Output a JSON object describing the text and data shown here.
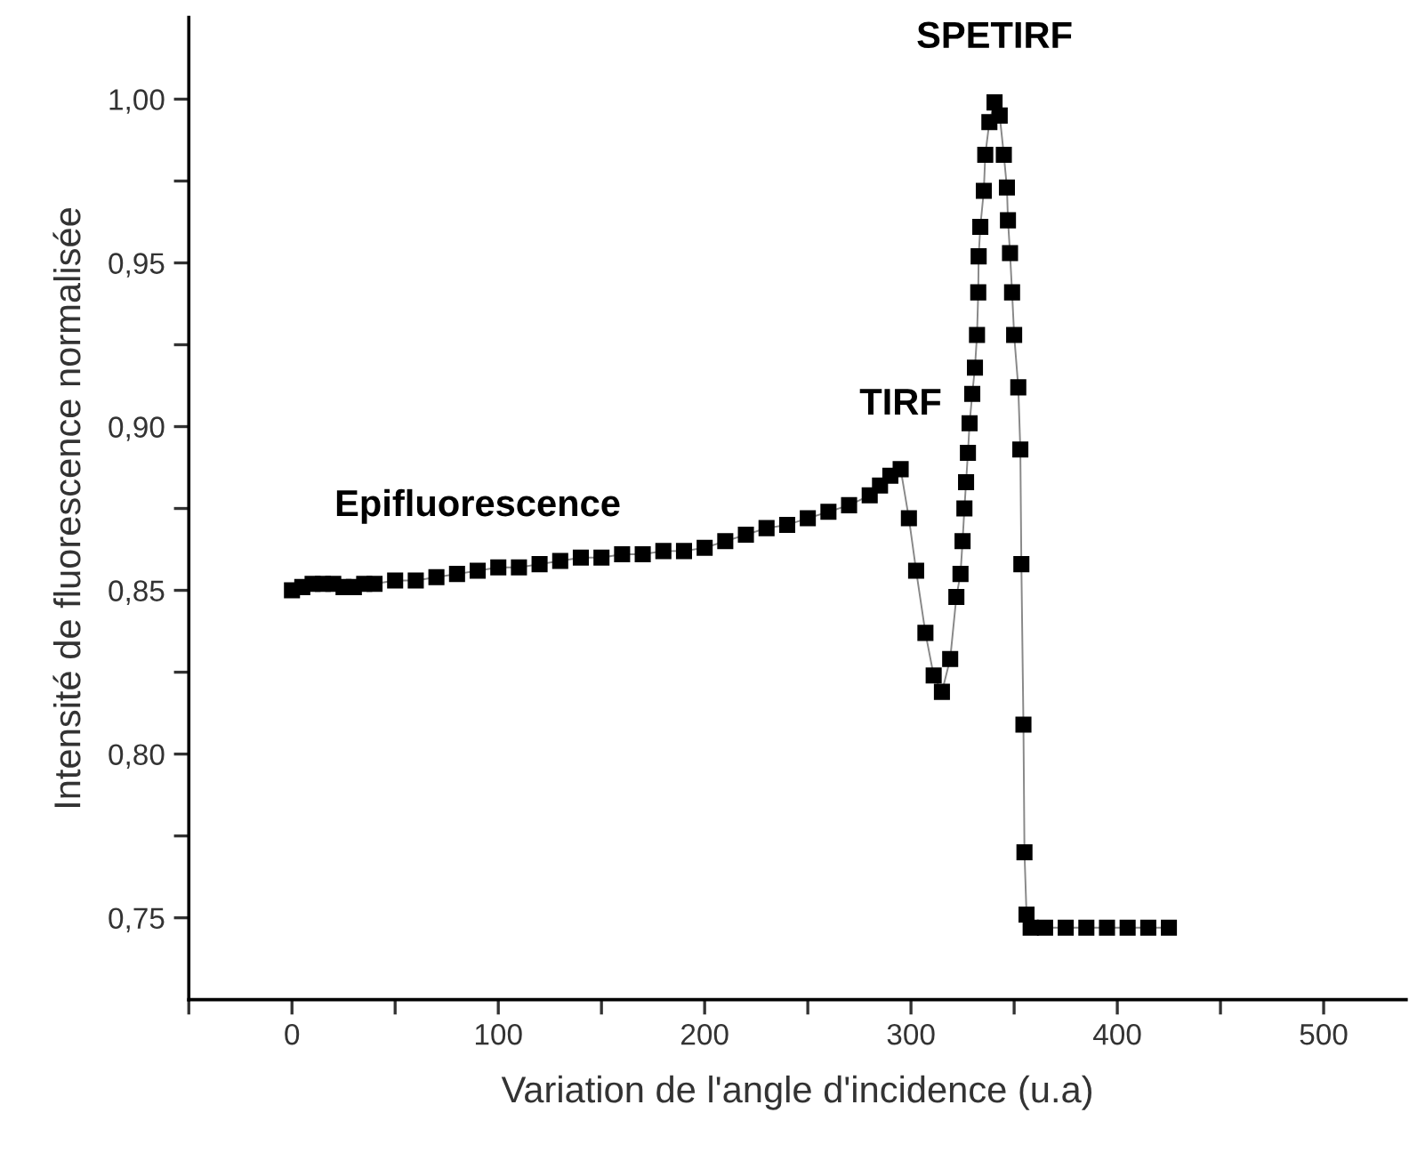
{
  "chart_data": {
    "type": "line",
    "xlabel": "Variation de l'angle d'incidence (u.a)",
    "ylabel": "Intensité de fluorescence normalisée",
    "xlim": [
      -50,
      540
    ],
    "ylim": [
      0.725,
      1.025
    ],
    "xticks": [
      {
        "value": -50,
        "label": null
      },
      0,
      {
        "value": 50,
        "label": null
      },
      100,
      {
        "value": 150,
        "label": null
      },
      200,
      {
        "value": 250,
        "label": null
      },
      300,
      {
        "value": 350,
        "label": null
      },
      400,
      {
        "value": 450,
        "label": null
      },
      500
    ],
    "yticks": [
      {
        "value": 0.75,
        "label": "0,75"
      },
      {
        "value": 0.775,
        "label": null
      },
      {
        "value": 0.8,
        "label": "0,80"
      },
      {
        "value": 0.825,
        "label": null
      },
      {
        "value": 0.85,
        "label": "0,85"
      },
      {
        "value": 0.875,
        "label": null
      },
      {
        "value": 0.9,
        "label": "0,90"
      },
      {
        "value": 0.925,
        "label": null
      },
      {
        "value": 0.95,
        "label": "0,95"
      },
      {
        "value": 0.975,
        "label": null
      },
      {
        "value": 1.0,
        "label": "1,00"
      }
    ],
    "grid": false,
    "marker": "square",
    "line_style": "solid",
    "series": [
      {
        "color": "#000000",
        "x": [
          0,
          5,
          10,
          15,
          20,
          25,
          30,
          35,
          40,
          50,
          60,
          70,
          80,
          90,
          100,
          110,
          120,
          130,
          140,
          150,
          160,
          170,
          180,
          190,
          200,
          210,
          220,
          230,
          240,
          250,
          260,
          270,
          280,
          285,
          290,
          295,
          299,
          302.5,
          307,
          311,
          315,
          319,
          322,
          324,
          325,
          325.9,
          326.7,
          327.6,
          328.4,
          329.7,
          331,
          332,
          332.6,
          332.8,
          333.6,
          335.3,
          336,
          338,
          340.5,
          343,
          345,
          346.5,
          347,
          348,
          349,
          350,
          352,
          353,
          353.5,
          354.5,
          355,
          356,
          358,
          365,
          375,
          385,
          395,
          405,
          415,
          425
        ],
        "values": [
          0.85,
          0.851,
          0.852,
          0.852,
          0.852,
          0.851,
          0.851,
          0.852,
          0.852,
          0.853,
          0.853,
          0.854,
          0.855,
          0.856,
          0.857,
          0.857,
          0.858,
          0.859,
          0.86,
          0.86,
          0.861,
          0.861,
          0.862,
          0.862,
          0.863,
          0.865,
          0.867,
          0.869,
          0.87,
          0.872,
          0.874,
          0.876,
          0.879,
          0.882,
          0.885,
          0.887,
          0.872,
          0.856,
          0.837,
          0.824,
          0.819,
          0.829,
          0.848,
          0.855,
          0.865,
          0.875,
          0.883,
          0.892,
          0.901,
          0.91,
          0.918,
          0.928,
          0.941,
          0.952,
          0.961,
          0.972,
          0.983,
          0.993,
          0.999,
          0.995,
          0.983,
          0.973,
          0.963,
          0.953,
          0.941,
          0.928,
          0.912,
          0.893,
          0.858,
          0.809,
          0.77,
          0.751,
          0.747,
          0.747,
          0.747,
          0.747,
          0.747,
          0.747,
          0.747,
          0.747
        ]
      }
    ],
    "annotations": [
      {
        "text": "Epifluorescence",
        "x": 90,
        "y": 0.856
      },
      {
        "text": "TIRF",
        "x": 295,
        "y": 0.887
      },
      {
        "text": "SPETIRF",
        "x": 340.5,
        "y": 0.999
      }
    ]
  }
}
